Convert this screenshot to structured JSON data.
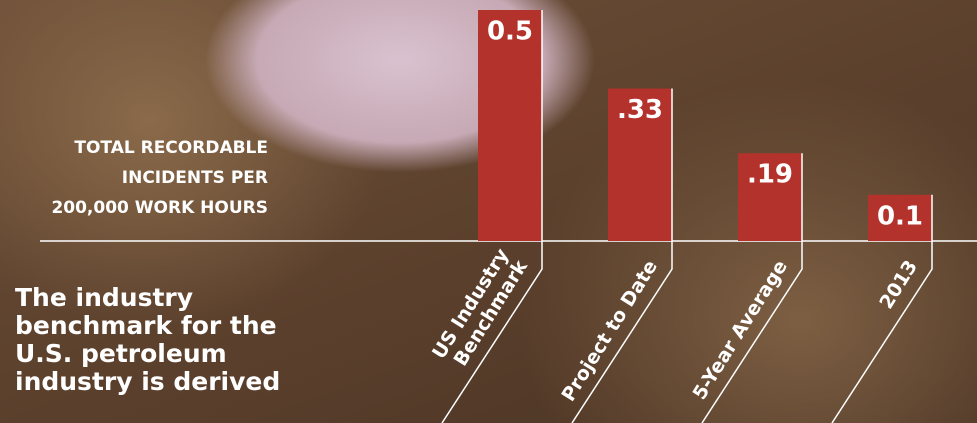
{
  "chart_data": {
    "type": "bar",
    "ylabel": [
      "TOTAL RECORDABLE",
      "INCIDENTS PER",
      "200,000 WORK HOURS"
    ],
    "annotation": [
      "The industry",
      "benchmark for the",
      "U.S. petroleum",
      "industry is derived"
    ],
    "categories": [
      "US Industry Benchmark",
      "Project to Date",
      "5-Year Average",
      "2013"
    ],
    "values": [
      0.5,
      0.33,
      0.19,
      0.1
    ],
    "value_labels": [
      "0.5",
      ".33",
      ".19",
      "0.1"
    ],
    "color": "#b3322b",
    "ylim": [
      0,
      0.5
    ]
  }
}
